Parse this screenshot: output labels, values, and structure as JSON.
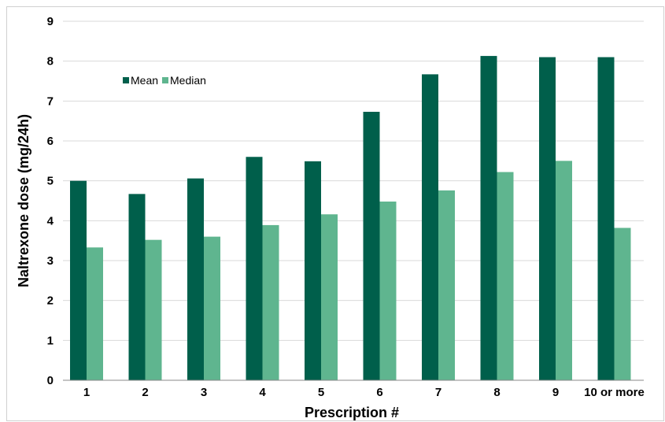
{
  "chart_data": {
    "type": "bar",
    "title": "",
    "xlabel": "Prescription #",
    "ylabel": "Naltrexone dose (mg/24h)",
    "ylim": [
      0,
      9
    ],
    "yticks": [
      0,
      1,
      2,
      3,
      4,
      5,
      6,
      7,
      8,
      9
    ],
    "grid": true,
    "legend_position": "top-left",
    "categories": [
      "1",
      "2",
      "3",
      "4",
      "5",
      "6",
      "7",
      "8",
      "9",
      "10 or more"
    ],
    "series": [
      {
        "name": "Mean",
        "color": "#005f4b",
        "values": [
          5.0,
          4.67,
          5.06,
          5.6,
          5.49,
          6.73,
          7.67,
          8.13,
          8.1,
          8.1
        ]
      },
      {
        "name": "Median",
        "color": "#5fb58f",
        "values": [
          3.33,
          3.52,
          3.6,
          3.89,
          4.16,
          4.48,
          4.76,
          5.22,
          5.5,
          3.82
        ]
      }
    ]
  }
}
